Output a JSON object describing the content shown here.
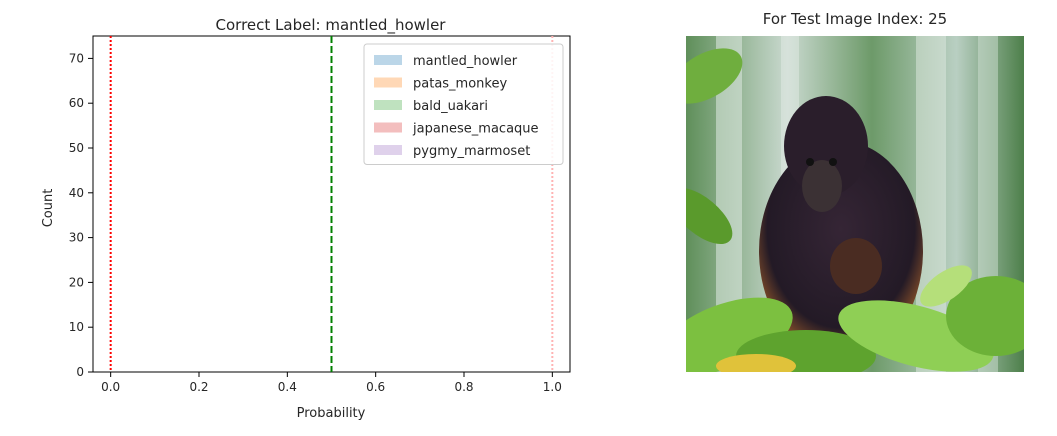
{
  "chart_data": {
    "type": "histogram",
    "title": "Correct Label: mantled_howler",
    "xlabel": "Probability",
    "ylabel": "Count",
    "xlim": [
      -0.04,
      1.04
    ],
    "ylim": [
      0,
      75
    ],
    "xticks": [
      "0.0",
      "0.2",
      "0.4",
      "0.6",
      "0.8",
      "1.0"
    ],
    "xtick_values": [
      0.0,
      0.2,
      0.4,
      0.6,
      0.8,
      1.0
    ],
    "yticks": [
      "0",
      "10",
      "20",
      "30",
      "40",
      "50",
      "60",
      "70"
    ],
    "ytick_values": [
      0,
      10,
      20,
      30,
      40,
      50,
      60,
      70
    ],
    "grid": false,
    "legend_position": "top-right",
    "series": [
      {
        "name": "mantled_howler",
        "color": "#1f77b4"
      },
      {
        "name": "patas_monkey",
        "color": "#ff7f0e"
      },
      {
        "name": "bald_uakari",
        "color": "#2ca02c"
      },
      {
        "name": "japanese_macaque",
        "color": "#d62728"
      },
      {
        "name": "pygmy_marmoset",
        "color": "#9467bd"
      }
    ],
    "reference_lines": [
      {
        "x": 0.0,
        "style": "dotted",
        "color": "#ff0000"
      },
      {
        "x": 0.5,
        "style": "dashed",
        "color": "#008000"
      },
      {
        "x": 1.0,
        "style": "dotted",
        "color": "#ffb3b3"
      }
    ]
  },
  "photo": {
    "title": "For Test Image Index: 25",
    "subject": "mantled howler monkey holding infant among green leaves",
    "palette": {
      "leaves": "#5aa02c",
      "leaves_light": "#a6d36a",
      "sky": "#d8e6de",
      "fur": "#2a1d2a",
      "fur_edge": "#b8662a",
      "face": "#3a3032"
    }
  }
}
